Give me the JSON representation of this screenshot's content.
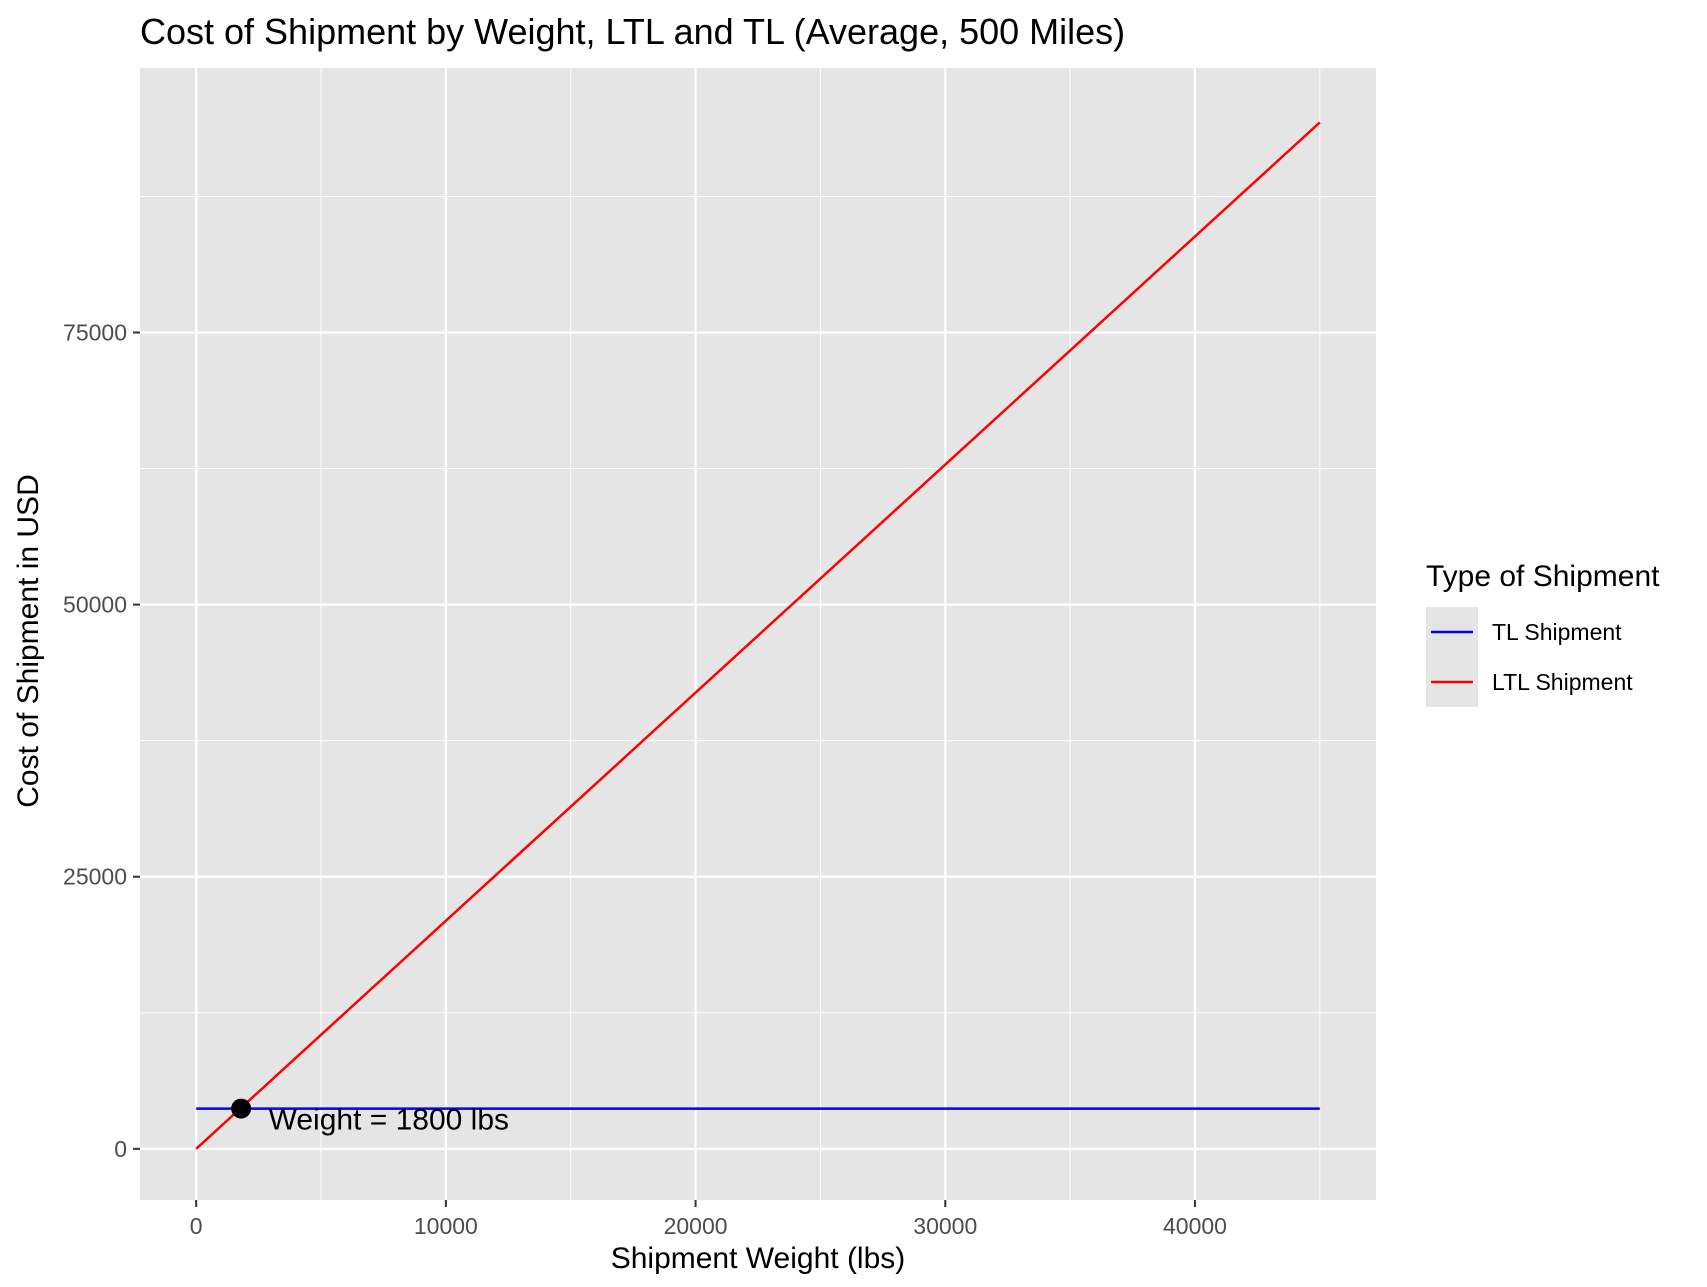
{
  "chart_data": {
    "type": "line",
    "title": "Cost of Shipment by Weight, LTL and TL (Average, 500 Miles)",
    "xlabel": "Shipment Weight (lbs)",
    "ylabel": "Cost of Shipment in USD",
    "xlim": [
      -2250,
      47250
    ],
    "ylim": [
      -4700,
      99300
    ],
    "x_ticks": [
      0,
      10000,
      20000,
      30000,
      40000
    ],
    "x_tick_labels": [
      "0",
      "10000",
      "20000",
      "30000",
      "40000"
    ],
    "y_ticks": [
      0,
      25000,
      50000,
      75000
    ],
    "y_tick_labels": [
      "0",
      "25000",
      "50000",
      "75000"
    ],
    "grid": true,
    "legend": {
      "title": "Type of Shipment",
      "position": "right",
      "entries": [
        {
          "label": "TL Shipment",
          "color": "#0000ff"
        },
        {
          "label": "LTL Shipment",
          "color": "#ff0000"
        }
      ]
    },
    "series": [
      {
        "name": "TL Shipment",
        "color": "#0000ff",
        "x": [
          0,
          45000
        ],
        "y": [
          3700,
          3700
        ]
      },
      {
        "name": "LTL Shipment",
        "color": "#ff0000",
        "x": [
          0,
          45000
        ],
        "y": [
          0,
          94300
        ]
      }
    ],
    "points": [
      {
        "x": 1800,
        "y": 3700,
        "color": "#000000"
      }
    ],
    "annotations": [
      {
        "text": "Weight =  1800 lbs",
        "x": 2900,
        "y": 1800
      }
    ],
    "panel_bg": "#e5e5e5",
    "grid_color": "#ffffff"
  }
}
